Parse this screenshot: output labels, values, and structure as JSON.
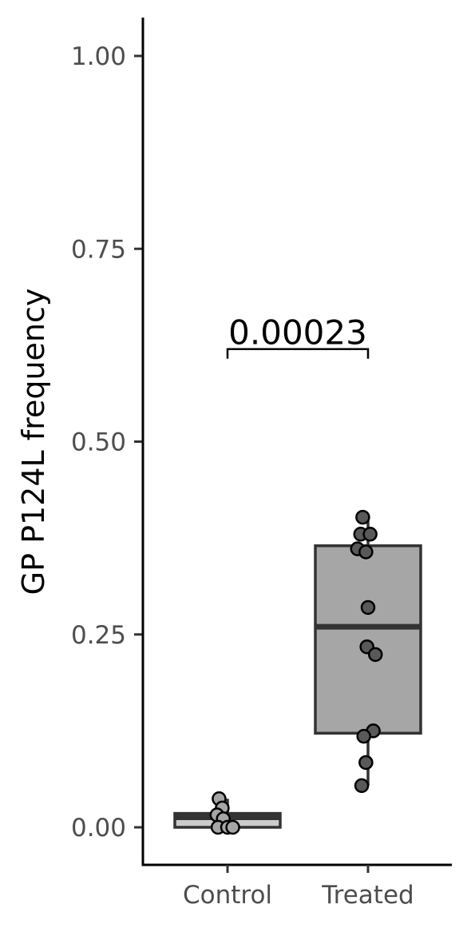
{
  "chart_data": {
    "type": "boxplot",
    "title": "",
    "xlabel": "",
    "ylabel": "GP P124L frequency",
    "ylim": [
      -0.05,
      1.05
    ],
    "yticks": [
      {
        "value": 0.0,
        "label": "0.00"
      },
      {
        "value": 0.25,
        "label": "0.25"
      },
      {
        "value": 0.5,
        "label": "0.50"
      },
      {
        "value": 0.75,
        "label": "0.75"
      },
      {
        "value": 1.0,
        "label": "1.00"
      }
    ],
    "categories": [
      "Control",
      "Treated"
    ],
    "grid": false,
    "legend": "none",
    "groups": [
      {
        "name": "Control",
        "box_fill": "#cccccc",
        "point_fill": "#a6a6a6",
        "box": {
          "min": 0.0,
          "q1": 0.0,
          "median": 0.013,
          "q3": 0.018,
          "max": 0.037
        },
        "points": [
          {
            "x": -0.08,
            "y": 0.037
          },
          {
            "x": -0.05,
            "y": 0.025
          },
          {
            "x": -0.1,
            "y": 0.016
          },
          {
            "x": -0.04,
            "y": 0.011
          },
          {
            "x": -0.09,
            "y": 0.0
          },
          {
            "x": 0.0,
            "y": 0.0
          },
          {
            "x": 0.05,
            "y": 0.0
          }
        ]
      },
      {
        "name": "Treated",
        "box_fill": "#a6a6a6",
        "point_fill": "#595959",
        "box": {
          "min": 0.054,
          "q1": 0.122,
          "median": 0.26,
          "q3": 0.365,
          "max": 0.402
        },
        "points": [
          {
            "x": -0.05,
            "y": 0.402
          },
          {
            "x": -0.07,
            "y": 0.38
          },
          {
            "x": 0.02,
            "y": 0.38
          },
          {
            "x": -0.1,
            "y": 0.361
          },
          {
            "x": -0.02,
            "y": 0.357
          },
          {
            "x": 0.0,
            "y": 0.285
          },
          {
            "x": -0.01,
            "y": 0.234
          },
          {
            "x": 0.07,
            "y": 0.224
          },
          {
            "x": 0.05,
            "y": 0.125
          },
          {
            "x": -0.04,
            "y": 0.118
          },
          {
            "x": -0.02,
            "y": 0.084
          },
          {
            "x": -0.06,
            "y": 0.054
          }
        ]
      }
    ],
    "annotations": [
      {
        "type": "significance",
        "from": "Control",
        "to": "Treated",
        "y": 0.62,
        "label": "0.00023"
      }
    ]
  }
}
